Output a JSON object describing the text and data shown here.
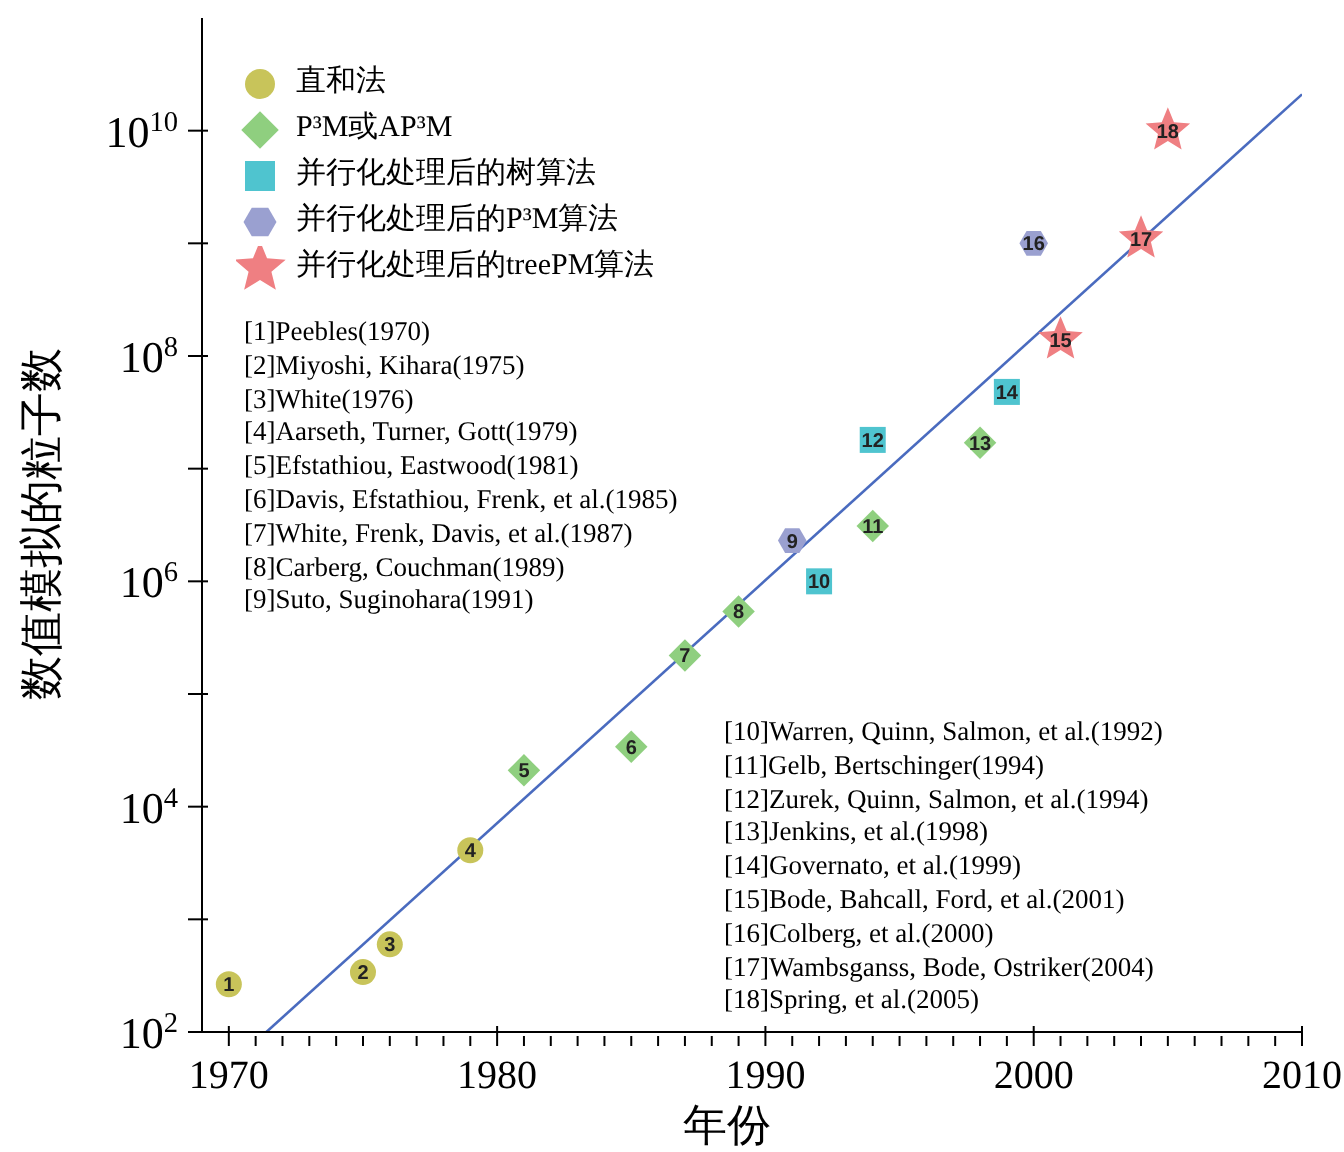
{
  "chart_data": {
    "type": "scatter",
    "xlabel": "年份",
    "ylabel": "数值模拟的粒子数",
    "log": "y",
    "legend": "top left",
    "xlim": [
      1969,
      2010
    ],
    "xticks": [
      1970,
      {
        "value": 1971,
        "label": null
      },
      {
        "value": 1972,
        "label": null
      },
      {
        "value": 1973,
        "label": null
      },
      {
        "value": 1974,
        "label": null
      },
      {
        "value": 1975,
        "label": null
      },
      {
        "value": 1976,
        "label": null
      },
      {
        "value": 1977,
        "label": null
      },
      {
        "value": 1978,
        "label": null
      },
      {
        "value": 1979,
        "label": null
      },
      1980,
      {
        "value": 1981,
        "label": null
      },
      {
        "value": 1982,
        "label": null
      },
      {
        "value": 1983,
        "label": null
      },
      {
        "value": 1984,
        "label": null
      },
      {
        "value": 1985,
        "label": null
      },
      {
        "value": 1986,
        "label": null
      },
      {
        "value": 1987,
        "label": null
      },
      {
        "value": 1988,
        "label": null
      },
      {
        "value": 1989,
        "label": null
      },
      1990,
      {
        "value": 1991,
        "label": null
      },
      {
        "value": 1992,
        "label": null
      },
      {
        "value": 1993,
        "label": null
      },
      {
        "value": 1994,
        "label": null
      },
      {
        "value": 1995,
        "label": null
      },
      {
        "value": 1996,
        "label": null
      },
      {
        "value": 1997,
        "label": null
      },
      {
        "value": 1998,
        "label": null
      },
      {
        "value": 1999,
        "label": null
      },
      2000,
      {
        "value": 2001,
        "label": null
      },
      {
        "value": 2002,
        "label": null
      },
      {
        "value": 2003,
        "label": null
      },
      {
        "value": 2004,
        "label": null
      },
      {
        "value": 2005,
        "label": null
      },
      {
        "value": 2006,
        "label": null
      },
      {
        "value": 2007,
        "label": null
      },
      {
        "value": 2008,
        "label": null
      },
      {
        "value": 2009,
        "label": null
      },
      2010
    ],
    "ylim": [
      100,
      100000000000
    ],
    "yticks": [
      {
        "value": 100,
        "label": "10$^{2}$"
      },
      {
        "value": 1000,
        "label": null
      },
      {
        "value": 10000,
        "label": "10$^{4}$"
      },
      {
        "value": 100000,
        "label": null
      },
      {
        "value": 1000000,
        "label": "10$^{6}$"
      },
      {
        "value": 10000000,
        "label": null
      },
      {
        "value": 100000000,
        "label": "10$^{8}$"
      },
      {
        "value": 1000000000,
        "label": null
      },
      {
        "value": 10000000000,
        "label": "10$^{10}$"
      }
    ],
    "series": [
      {
        "name": "直和法",
        "marker": "circle",
        "color": "#c8c45a",
        "x": [
          1970,
          1975,
          1976,
          1979
        ],
        "values": [
          265,
          340,
          600,
          4100
        ]
      },
      {
        "name": "P³M或AP³M",
        "marker": "diamond",
        "color": "#8fcf7f",
        "x": [
          1981,
          1985,
          1987,
          1989,
          1994,
          1998
        ],
        "values": [
          21000,
          34000,
          220000,
          540000,
          3100000,
          17000000
        ]
      },
      {
        "name": "并行化处理后的树算法",
        "marker": "square",
        "color": "#4fc4cf",
        "x": [
          1992,
          1994,
          1999
        ],
        "values": [
          1000000,
          18000000,
          48000000
        ]
      },
      {
        "name": "并行化处理后的P³M算法",
        "color": "#9aa0d0",
        "x": [
          1991,
          2000
        ],
        "values": [
          2300000,
          1000000000
        ]
      },
      {
        "name": "并行化处理后的treePM算法",
        "marker": "star",
        "color": "#ef7f82",
        "x": [
          2001,
          2004,
          2005
        ],
        "values": [
          140000000,
          1100000000,
          10000000000
        ]
      },
      {
        "type": "line",
        "marker": "none",
        "line_style": "solid",
        "color": "#4a6bbf",
        "x": [
          1971.4,
          2010
        ],
        "values": [
          100,
          21000000000
        ]
      }
    ],
    "annotations": [
      "[1]Peebles(1970)\n[2]Miyoshi, Kihara(1975)\n[3]White(1976)\n[4]Aarseth, Turner, Gott(1979)\n[5]Efstathiou, Eastwood(1981)\n[6]Davis, Efstathiou, Frenk, et al.(1985)\n[7]White, Frenk, Davis, et al.(1987)\n[8]Carberg, Couchman(1989)\n[9]Suto, Suginohara(1991)",
      "[10]Warren, Quinn, Salmon, et al.(1992)\n[11]Gelb, Bertschinger(1994)\n[12]Zurek, Quinn, Salmon, et al.(1994)\n[13]Jenkins, et al.(1998)\n[14]Governato, et al.(1999)\n[15]Bode, Bahcall, Ford, et al.(2001)\n[16]Colberg, et al.(2000)\n[17]Wambsganss, Bode, Ostriker(2004)\n[18]Spring, et al.(2005)",
      {
        "text": "1",
        "x": 1970,
        "y": 265
      },
      {
        "text": "2",
        "x": 1975,
        "y": 340
      },
      {
        "text": "3",
        "x": 1976,
        "y": 600
      },
      {
        "text": "4",
        "x": 1979,
        "y": 4100
      },
      {
        "text": "5",
        "x": 1981,
        "y": 21000
      },
      {
        "text": "6",
        "x": 1985,
        "y": 34000
      },
      {
        "text": "7",
        "x": 1987,
        "y": 220000
      },
      {
        "text": "8",
        "x": 1989,
        "y": 540000
      },
      {
        "text": "9",
        "x": 1991,
        "y": 2300000
      },
      {
        "text": "10",
        "x": 1992,
        "y": 1000000
      },
      {
        "text": "11",
        "x": 1994,
        "y": 3100000
      },
      {
        "text": "12",
        "x": 1994,
        "y": 18000000
      },
      {
        "text": "13",
        "x": 1998,
        "y": 17000000
      },
      {
        "text": "14",
        "x": 1999,
        "y": 48000000
      },
      {
        "text": "15",
        "x": 2001,
        "y": 140000000
      },
      {
        "text": "16",
        "x": 2000,
        "y": 1000000000
      },
      {
        "text": "17",
        "x": 2004,
        "y": 1100000000
      },
      {
        "text": "18",
        "x": 2005,
        "y": 10000000000
      }
    ]
  }
}
